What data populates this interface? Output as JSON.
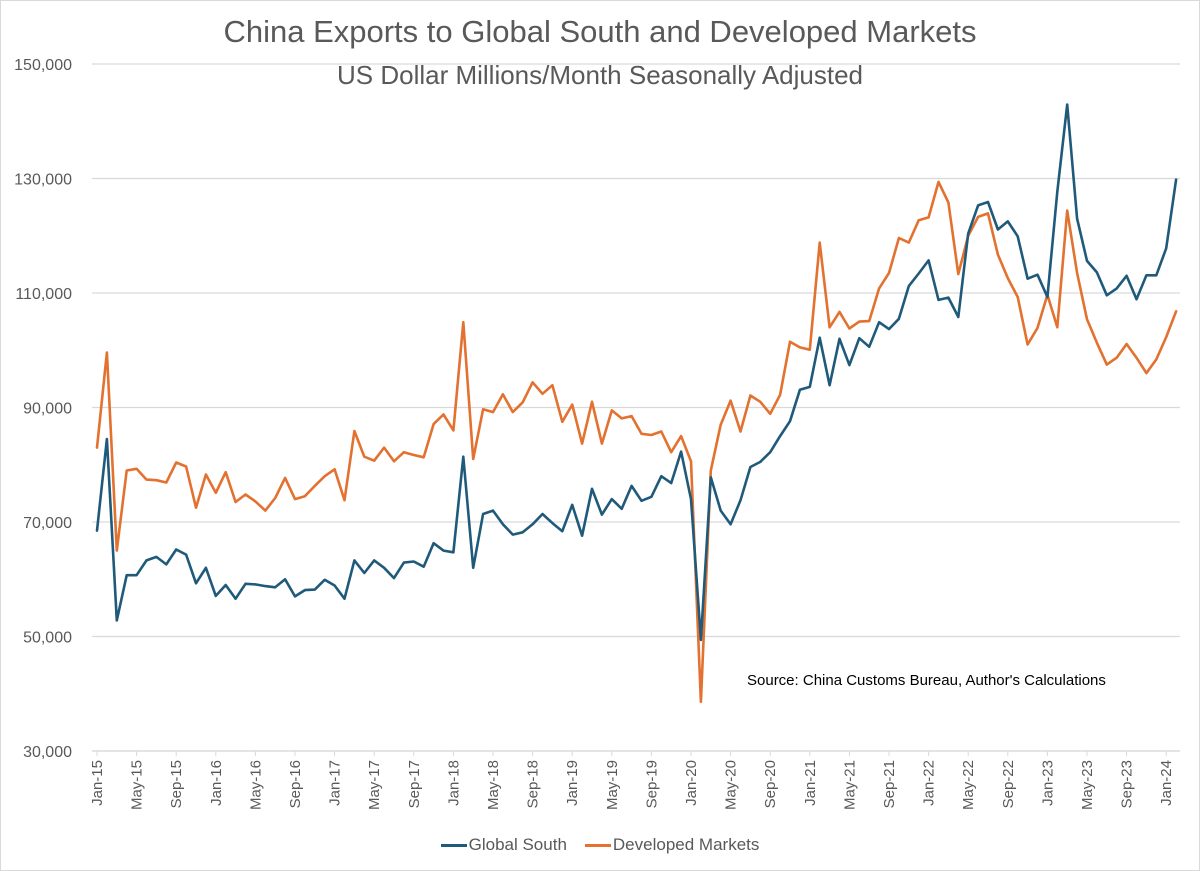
{
  "chart_data": {
    "type": "line",
    "title": "China Exports to Global South and Developed Markets",
    "subtitle": "US Dollar Millions/Month Seasonally Adjusted",
    "xlabel": "",
    "ylabel": "",
    "ylim": [
      30000,
      150000
    ],
    "yticks": [
      30000,
      50000,
      70000,
      90000,
      110000,
      130000,
      150000
    ],
    "ytick_labels": [
      "30,000",
      "50,000",
      "70,000",
      "90,000",
      "110,000",
      "130,000",
      "150,000"
    ],
    "x_start": "Jan-15",
    "x_tick_every_months": 4,
    "x_tick_labels": [
      "Jan-15",
      "May-15",
      "Sep-15",
      "Jan-16",
      "May-16",
      "Sep-16",
      "Jan-17",
      "May-17",
      "Sep-17",
      "Jan-18",
      "May-18",
      "Sep-18",
      "Jan-19",
      "May-19",
      "Sep-19",
      "Jan-20",
      "May-20",
      "Sep-20",
      "Jan-21",
      "May-21",
      "Sep-21",
      "Jan-22",
      "May-22",
      "Sep-22",
      "Jan-23",
      "May-23",
      "Sep-23",
      "Jan-24"
    ],
    "grid": "horizontal",
    "legend_position": "bottom",
    "annotation": "Source: China Customs Bureau, Author's Calculations",
    "series": [
      {
        "name": "Global South",
        "color": "#1f5a7a",
        "values": [
          68500,
          84500,
          52800,
          60700,
          60700,
          63300,
          63900,
          62600,
          65200,
          64300,
          59300,
          62000,
          57100,
          59000,
          56600,
          59200,
          59100,
          58800,
          58600,
          60000,
          57000,
          58100,
          58200,
          59900,
          58900,
          56600,
          63300,
          61100,
          63300,
          62000,
          60200,
          62900,
          63100,
          62200,
          66300,
          65000,
          64700,
          81400,
          62000,
          71400,
          72000,
          69600,
          67800,
          68200,
          69600,
          71400,
          69800,
          68400,
          73000,
          67600,
          75800,
          71300,
          74000,
          72300,
          76300,
          73700,
          74400,
          78000,
          76800,
          82300,
          74000,
          49400,
          77800,
          72000,
          69600,
          73800,
          79600,
          80500,
          82200,
          85000,
          87600,
          93100,
          93600,
          102200,
          93900,
          102000,
          97400,
          102100,
          100600,
          104900,
          103700,
          105500,
          111200,
          113400,
          115700,
          108800,
          109200,
          105800,
          120400,
          125300,
          125900,
          121100,
          122500,
          119900,
          112500,
          113200,
          109300,
          127700,
          142900,
          123000,
          115600,
          113600,
          109600,
          110800,
          113000,
          108900,
          113100,
          113100,
          117800,
          129800
        ]
      },
      {
        "name": "Developed Markets",
        "color": "#e3712f",
        "values": [
          83000,
          99600,
          65000,
          79000,
          79300,
          77400,
          77300,
          76900,
          80400,
          79700,
          72500,
          78300,
          75100,
          78700,
          73500,
          74800,
          73600,
          72000,
          74200,
          77700,
          74000,
          74500,
          76300,
          78000,
          79200,
          73800,
          85900,
          81400,
          80700,
          83000,
          80600,
          82200,
          81700,
          81300,
          87100,
          88800,
          86000,
          104900,
          81000,
          89700,
          89200,
          92300,
          89200,
          90900,
          94400,
          92400,
          93900,
          87500,
          90500,
          83700,
          91000,
          83700,
          89500,
          88100,
          88500,
          85400,
          85200,
          85800,
          82200,
          85000,
          80600,
          38600,
          79000,
          87000,
          91200,
          85800,
          92100,
          91000,
          88900,
          92200,
          101500,
          100500,
          100100,
          118800,
          104000,
          106700,
          103800,
          105000,
          105100,
          110800,
          113500,
          119600,
          118800,
          122700,
          123200,
          129400,
          125800,
          113300,
          120000,
          123300,
          123900,
          116700,
          112600,
          109300,
          101000,
          103900,
          109700,
          104000,
          124400,
          113500,
          105400,
          101300,
          97500,
          98700,
          101100,
          98700,
          96000,
          98400,
          102300,
          106800
        ]
      }
    ]
  }
}
